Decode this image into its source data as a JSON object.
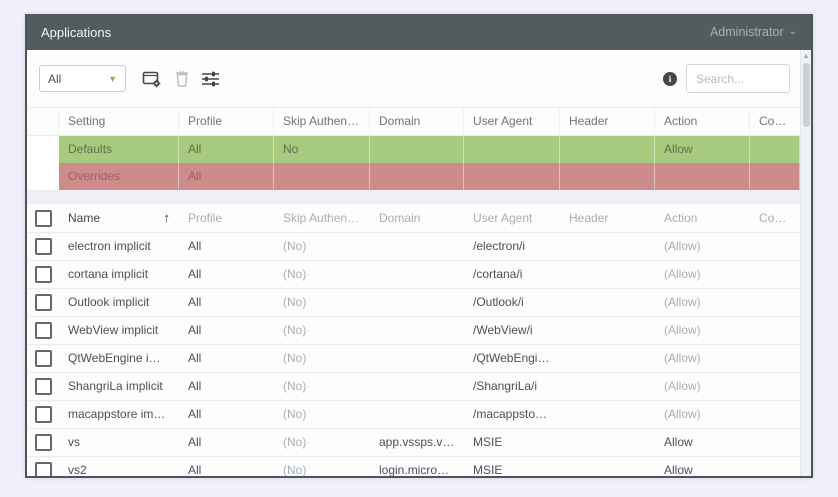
{
  "window": {
    "title": "Applications",
    "user_menu": "Administrator"
  },
  "toolbar": {
    "filter_selected": "All",
    "search_placeholder": "Search...",
    "icons": [
      "add-application-icon",
      "trash-icon",
      "sliders-icon",
      "info-icon"
    ]
  },
  "defaults_table": {
    "columns": [
      "",
      "Setting",
      "Profile",
      "Skip Authentication",
      "Domain",
      "User Agent",
      "Header",
      "Action",
      "Comment"
    ],
    "rows": [
      {
        "variant": "defaults",
        "setting": "Defaults",
        "profile": "All",
        "skip_authentication": "No",
        "domain": "",
        "user_agent": "",
        "header": "",
        "action": "Allow",
        "comment": ""
      },
      {
        "variant": "overrides",
        "setting": "Overrides",
        "profile": "All",
        "skip_authentication": "",
        "domain": "",
        "user_agent": "",
        "header": "",
        "action": "",
        "comment": ""
      }
    ]
  },
  "apps_table": {
    "columns": [
      "Name",
      "Profile",
      "Skip Authentication",
      "Domain",
      "User Agent",
      "Header",
      "Action",
      "Comment"
    ],
    "sort": {
      "column": "Name",
      "indicator": "↑"
    },
    "rows": [
      {
        "name": "electron implicit",
        "profile": "All",
        "skip_authentication": "(No)",
        "domain": "",
        "user_agent": "/electron/i",
        "header": "",
        "action": "(Allow)",
        "comment": ""
      },
      {
        "name": "cortana implicit",
        "profile": "All",
        "skip_authentication": "(No)",
        "domain": "",
        "user_agent": "/cortana/i",
        "header": "",
        "action": "(Allow)",
        "comment": ""
      },
      {
        "name": "Outlook implicit",
        "profile": "All",
        "skip_authentication": "(No)",
        "domain": "",
        "user_agent": "/Outlook/i",
        "header": "",
        "action": "(Allow)",
        "comment": ""
      },
      {
        "name": "WebView implicit",
        "profile": "All",
        "skip_authentication": "(No)",
        "domain": "",
        "user_agent": "/WebView/i",
        "header": "",
        "action": "(Allow)",
        "comment": ""
      },
      {
        "name": "QtWebEngine implicit",
        "profile": "All",
        "skip_authentication": "(No)",
        "domain": "",
        "user_agent": "/QtWebEngine/i",
        "header": "",
        "action": "(Allow)",
        "comment": ""
      },
      {
        "name": "ShangriLa implicit",
        "profile": "All",
        "skip_authentication": "(No)",
        "domain": "",
        "user_agent": "/ShangriLa/i",
        "header": "",
        "action": "(Allow)",
        "comment": ""
      },
      {
        "name": "macappstore implicit",
        "profile": "All",
        "skip_authentication": "(No)",
        "domain": "",
        "user_agent": "/macappstore/i",
        "header": "",
        "action": "(Allow)",
        "comment": ""
      },
      {
        "name": "vs",
        "profile": "All",
        "skip_authentication": "(No)",
        "domain": "app.vssps.visualst...",
        "user_agent": "MSIE",
        "header": "",
        "action": "Allow",
        "comment": ""
      },
      {
        "name": "vs2",
        "profile": "All",
        "skip_authentication": "(No)",
        "domain": "login.microsoftonl...",
        "user_agent": "MSIE",
        "header": "",
        "action": "Allow",
        "comment": ""
      }
    ]
  },
  "colors": {
    "titlebar": "#525b5e",
    "window_border": "#4b555a",
    "defaults_row": "#a7cb7e",
    "overrides_row": "#cb8c8b",
    "select_caret": "#b1a245",
    "outer_background": "#f1eff9"
  }
}
